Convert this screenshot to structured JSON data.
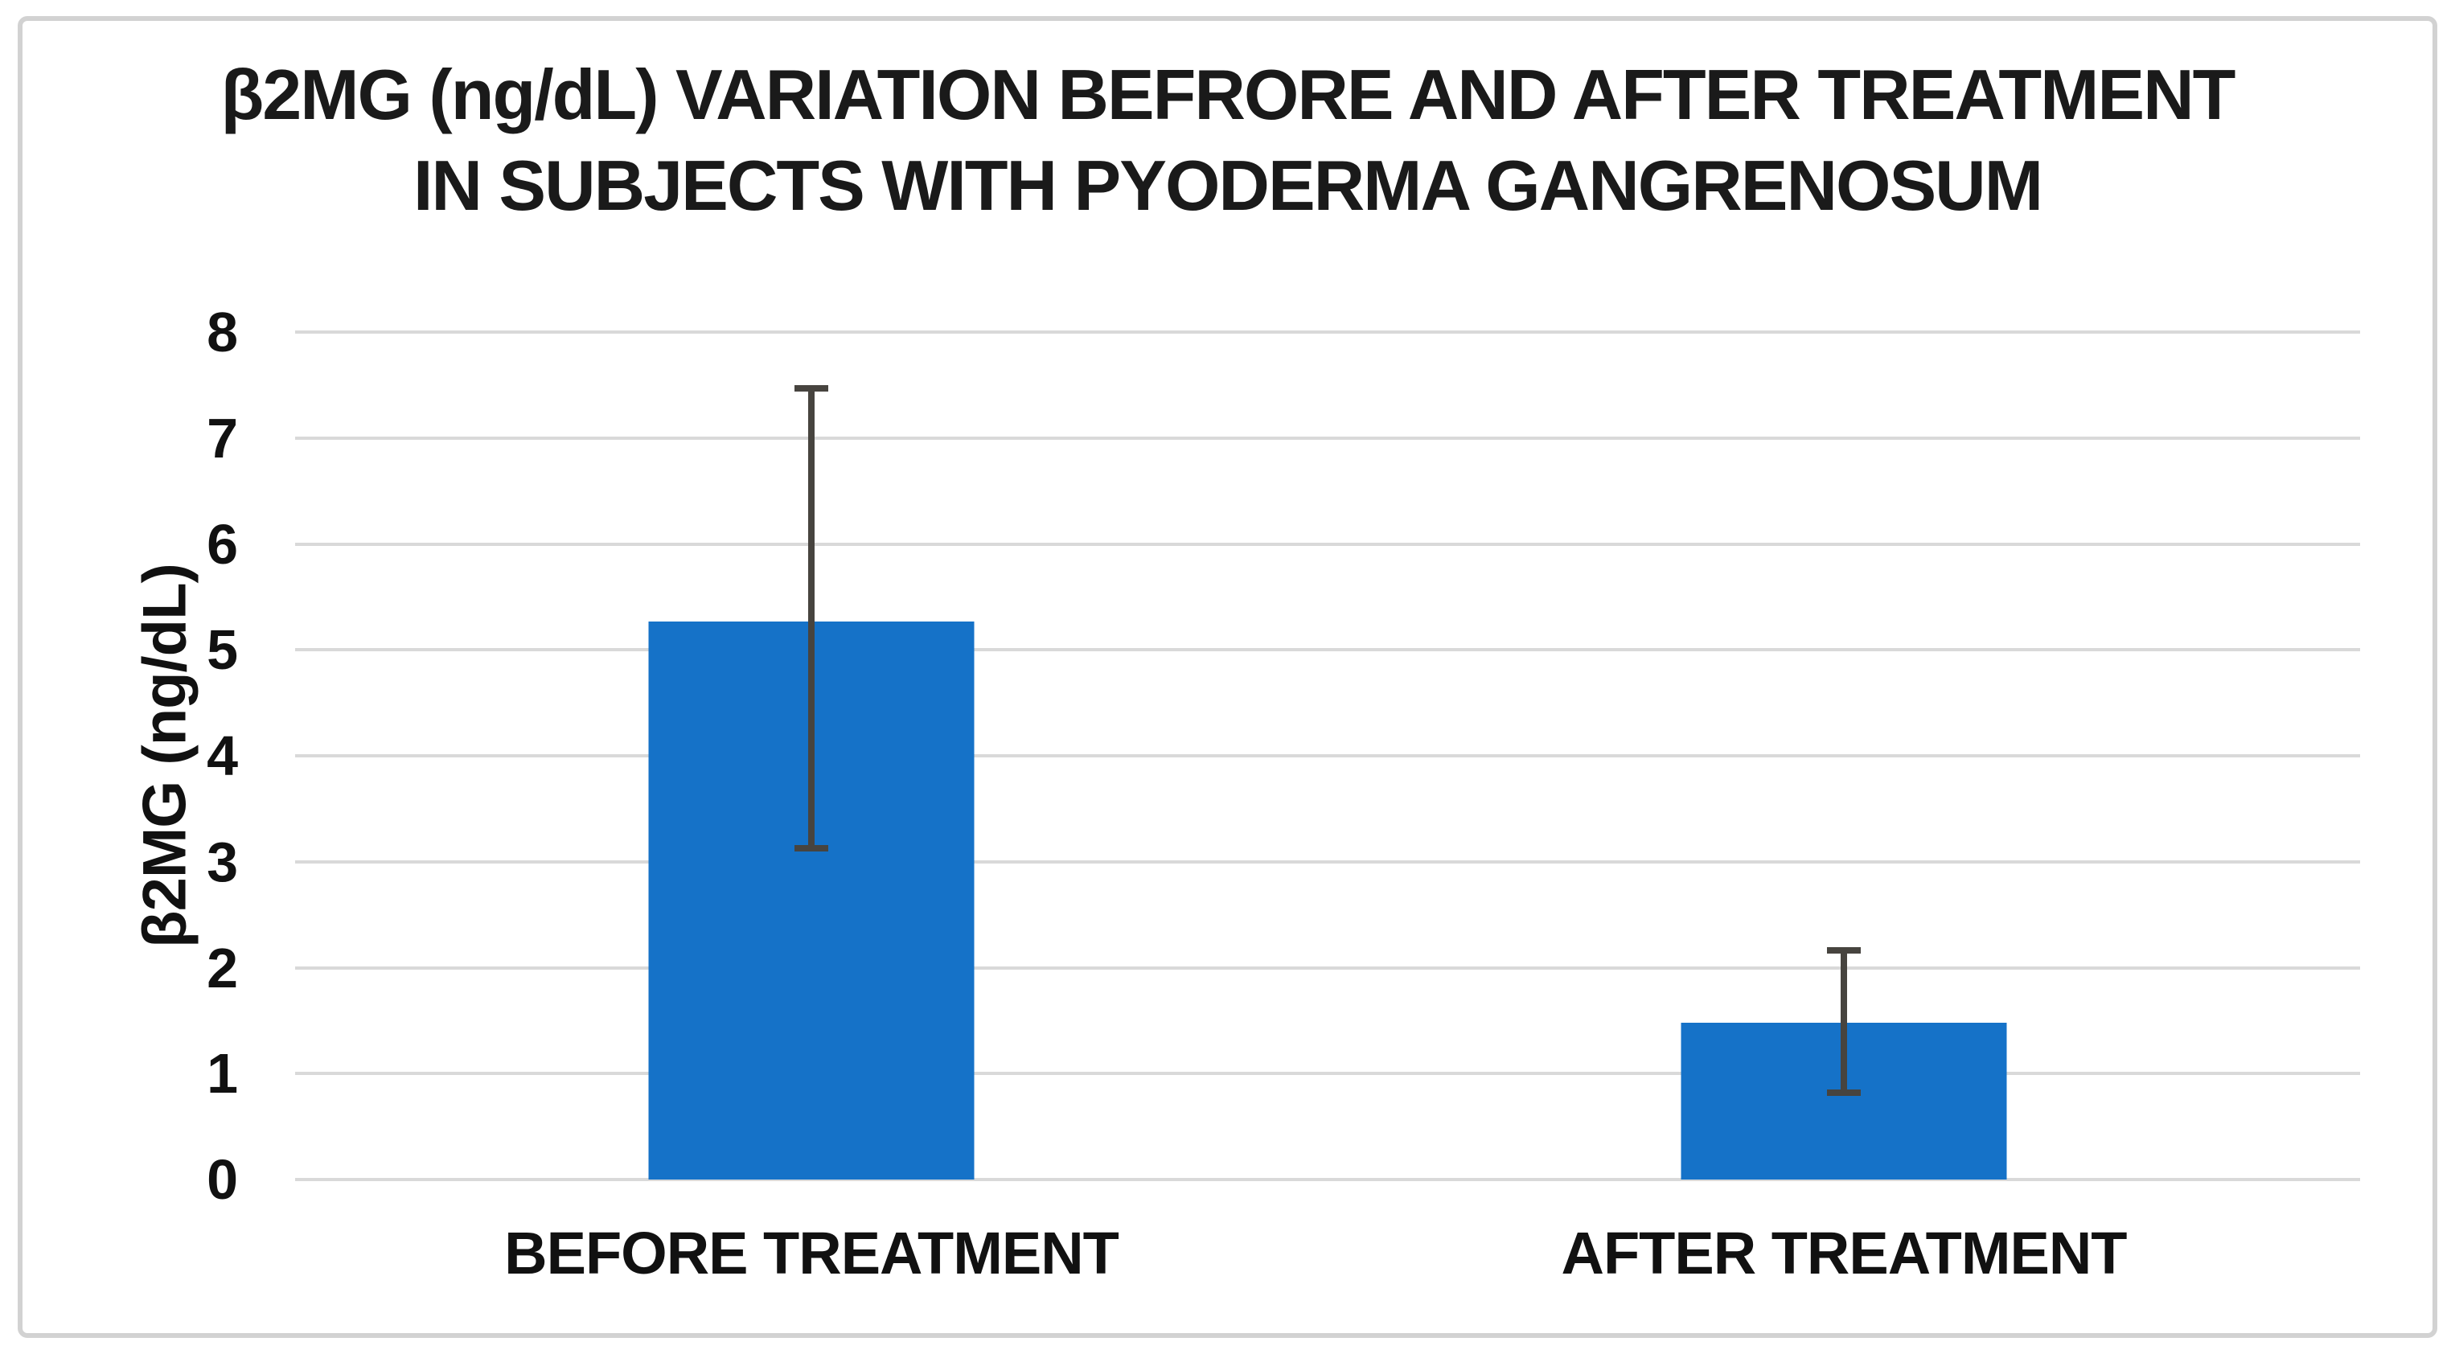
{
  "chart_data": {
    "type": "bar",
    "title": "β2MG (ng/dL) VARIATION BEFRORE AND AFTER TREATMENT IN SUBJECTS WITH PYODERMA GANGRENOSUM",
    "title_lines": [
      "β2MG (ng/dL) VARIATION BEFRORE AND AFTER TREATMENT",
      "IN SUBJECTS WITH PYODERMA GANGRENOSUM"
    ],
    "categories": [
      "BEFORE TREATMENT",
      "AFTER TREATMENT"
    ],
    "values": [
      5.27,
      1.48
    ],
    "error_bars": {
      "upper": [
        7.5,
        2.19
      ],
      "lower": [
        3.1,
        0.79
      ]
    },
    "xlabel": "",
    "ylabel": "β2MG (ng/dL)",
    "ylim": [
      0,
      8
    ],
    "yticks": [
      0,
      1,
      2,
      3,
      4,
      5,
      6,
      7,
      8
    ],
    "grid": true,
    "legend": null,
    "colors": {
      "bar": "#1572C8",
      "error_bar": "#47443F",
      "gridline": "#D9D9D9",
      "text": "#1A1A1A",
      "frame_border": "#D2D2D2",
      "background": "#FFFFFF"
    }
  }
}
